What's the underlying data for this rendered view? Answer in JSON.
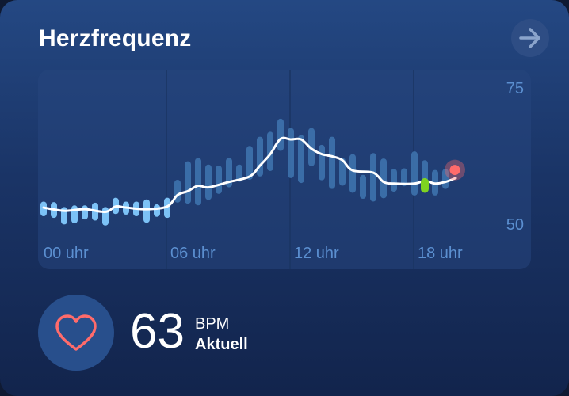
{
  "header": {
    "title": "Herzfrequenz",
    "open_icon": "arrow-right-icon"
  },
  "chart": {
    "y_top_label": "75",
    "y_bottom_label": "50",
    "x_labels": [
      "00 uhr",
      "06 uhr",
      "12 uhr",
      "18 uhr"
    ],
    "colors": {
      "range_bar_day": "#3f75b0",
      "range_bar_early": "#7cc2f6",
      "trend_line": "#ffffff",
      "current_bar": "#7ed321",
      "current_dot": "#ff6b6b",
      "label": "#5b8fd0"
    }
  },
  "chart_data": {
    "type": "line",
    "title": "Herzfrequenz",
    "x_tick_labels": [
      "00 uhr",
      "06 uhr",
      "12 uhr",
      "18 uhr"
    ],
    "y_tick_labels": [
      "75",
      "50"
    ],
    "ylim": [
      50,
      75
    ],
    "grid": "vertical-only",
    "series": [
      {
        "kind": "range-bars",
        "points": [
          {
            "hour": 0.0,
            "low": 51.3,
            "high": 54.0
          },
          {
            "hour": 0.5,
            "low": 51.0,
            "high": 53.9
          },
          {
            "hour": 1.0,
            "low": 49.8,
            "high": 53.0
          },
          {
            "hour": 1.5,
            "low": 50.0,
            "high": 53.3
          },
          {
            "hour": 2.0,
            "low": 50.7,
            "high": 53.3
          },
          {
            "hour": 2.5,
            "low": 50.5,
            "high": 53.8
          },
          {
            "hour": 3.0,
            "low": 49.6,
            "high": 53.0
          },
          {
            "hour": 3.5,
            "low": 51.7,
            "high": 54.7
          },
          {
            "hour": 4.0,
            "low": 51.6,
            "high": 54.0
          },
          {
            "hour": 4.5,
            "low": 51.3,
            "high": 54.0
          },
          {
            "hour": 5.0,
            "low": 50.1,
            "high": 54.4
          },
          {
            "hour": 5.5,
            "low": 51.2,
            "high": 53.5
          },
          {
            "hour": 6.0,
            "low": 51.0,
            "high": 54.7
          },
          {
            "hour": 6.5,
            "low": 53.8,
            "high": 58.0
          },
          {
            "hour": 7.0,
            "low": 53.6,
            "high": 61.4
          },
          {
            "hour": 7.5,
            "low": 53.3,
            "high": 62.0
          },
          {
            "hour": 8.0,
            "low": 54.3,
            "high": 60.8
          },
          {
            "hour": 8.5,
            "low": 55.4,
            "high": 60.6
          },
          {
            "hour": 9.0,
            "low": 56.6,
            "high": 62.0
          },
          {
            "hour": 9.5,
            "low": 57.6,
            "high": 60.8
          },
          {
            "hour": 10.0,
            "low": 58.0,
            "high": 64.2
          },
          {
            "hour": 10.5,
            "low": 58.6,
            "high": 65.9
          },
          {
            "hour": 11.0,
            "low": 59.6,
            "high": 66.8
          },
          {
            "hour": 11.5,
            "low": 63.3,
            "high": 69.2
          },
          {
            "hour": 12.0,
            "low": 58.3,
            "high": 67.5
          },
          {
            "hour": 12.5,
            "low": 57.4,
            "high": 66.2
          },
          {
            "hour": 13.0,
            "low": 60.5,
            "high": 67.5
          },
          {
            "hour": 13.5,
            "low": 57.9,
            "high": 64.4
          },
          {
            "hour": 14.0,
            "low": 56.3,
            "high": 65.9
          },
          {
            "hour": 14.5,
            "low": 56.9,
            "high": 62.0
          },
          {
            "hour": 15.0,
            "low": 55.6,
            "high": 62.7
          },
          {
            "hour": 15.5,
            "low": 54.5,
            "high": 58.9
          },
          {
            "hour": 16.0,
            "low": 54.0,
            "high": 62.9
          },
          {
            "hour": 16.5,
            "low": 54.6,
            "high": 61.9
          },
          {
            "hour": 17.0,
            "low": 55.8,
            "high": 60.0
          },
          {
            "hour": 17.5,
            "low": 56.8,
            "high": 60.1
          },
          {
            "hour": 18.0,
            "low": 55.1,
            "high": 63.2
          },
          {
            "hour": 18.5,
            "low": 57.4,
            "high": 61.6
          },
          {
            "hour": 19.0,
            "low": 55.1,
            "high": 59.8
          },
          {
            "hour": 19.5,
            "low": 56.3,
            "high": 60.0
          }
        ]
      },
      {
        "kind": "trend-line",
        "points": [
          {
            "hour": 0.0,
            "value": 52.9
          },
          {
            "hour": 1.0,
            "value": 52.3
          },
          {
            "hour": 2.0,
            "value": 52.6
          },
          {
            "hour": 3.0,
            "value": 52.1
          },
          {
            "hour": 3.5,
            "value": 53.1
          },
          {
            "hour": 4.0,
            "value": 52.9
          },
          {
            "hour": 5.0,
            "value": 52.6
          },
          {
            "hour": 6.0,
            "value": 53.1
          },
          {
            "hour": 6.5,
            "value": 55.2
          },
          {
            "hour": 7.0,
            "value": 55.9
          },
          {
            "hour": 7.5,
            "value": 56.9
          },
          {
            "hour": 8.0,
            "value": 56.6
          },
          {
            "hour": 9.0,
            "value": 57.6
          },
          {
            "hour": 10.0,
            "value": 58.6
          },
          {
            "hour": 10.5,
            "value": 60.6
          },
          {
            "hour": 11.0,
            "value": 62.7
          },
          {
            "hour": 11.5,
            "value": 65.5
          },
          {
            "hour": 12.0,
            "value": 65.4
          },
          {
            "hour": 12.5,
            "value": 65.4
          },
          {
            "hour": 13.0,
            "value": 63.7
          },
          {
            "hour": 13.5,
            "value": 62.7
          },
          {
            "hour": 14.0,
            "value": 62.3
          },
          {
            "hour": 14.5,
            "value": 61.6
          },
          {
            "hour": 15.0,
            "value": 59.7
          },
          {
            "hour": 16.0,
            "value": 59.3
          },
          {
            "hour": 16.5,
            "value": 57.6
          },
          {
            "hour": 17.0,
            "value": 57.3
          },
          {
            "hour": 18.0,
            "value": 57.3
          },
          {
            "hour": 18.5,
            "value": 57.8
          },
          {
            "hour": 19.0,
            "value": 57.3
          },
          {
            "hour": 19.5,
            "value": 57.6
          },
          {
            "hour": 20.0,
            "value": 58.3
          }
        ]
      },
      {
        "kind": "current-marker",
        "hour": 18.5,
        "low": 55.6,
        "high": 58.3,
        "dot_value": 59.8
      }
    ]
  },
  "current": {
    "value": "63",
    "unit": "BPM",
    "status": "Aktuell",
    "icon": "heart-icon"
  }
}
